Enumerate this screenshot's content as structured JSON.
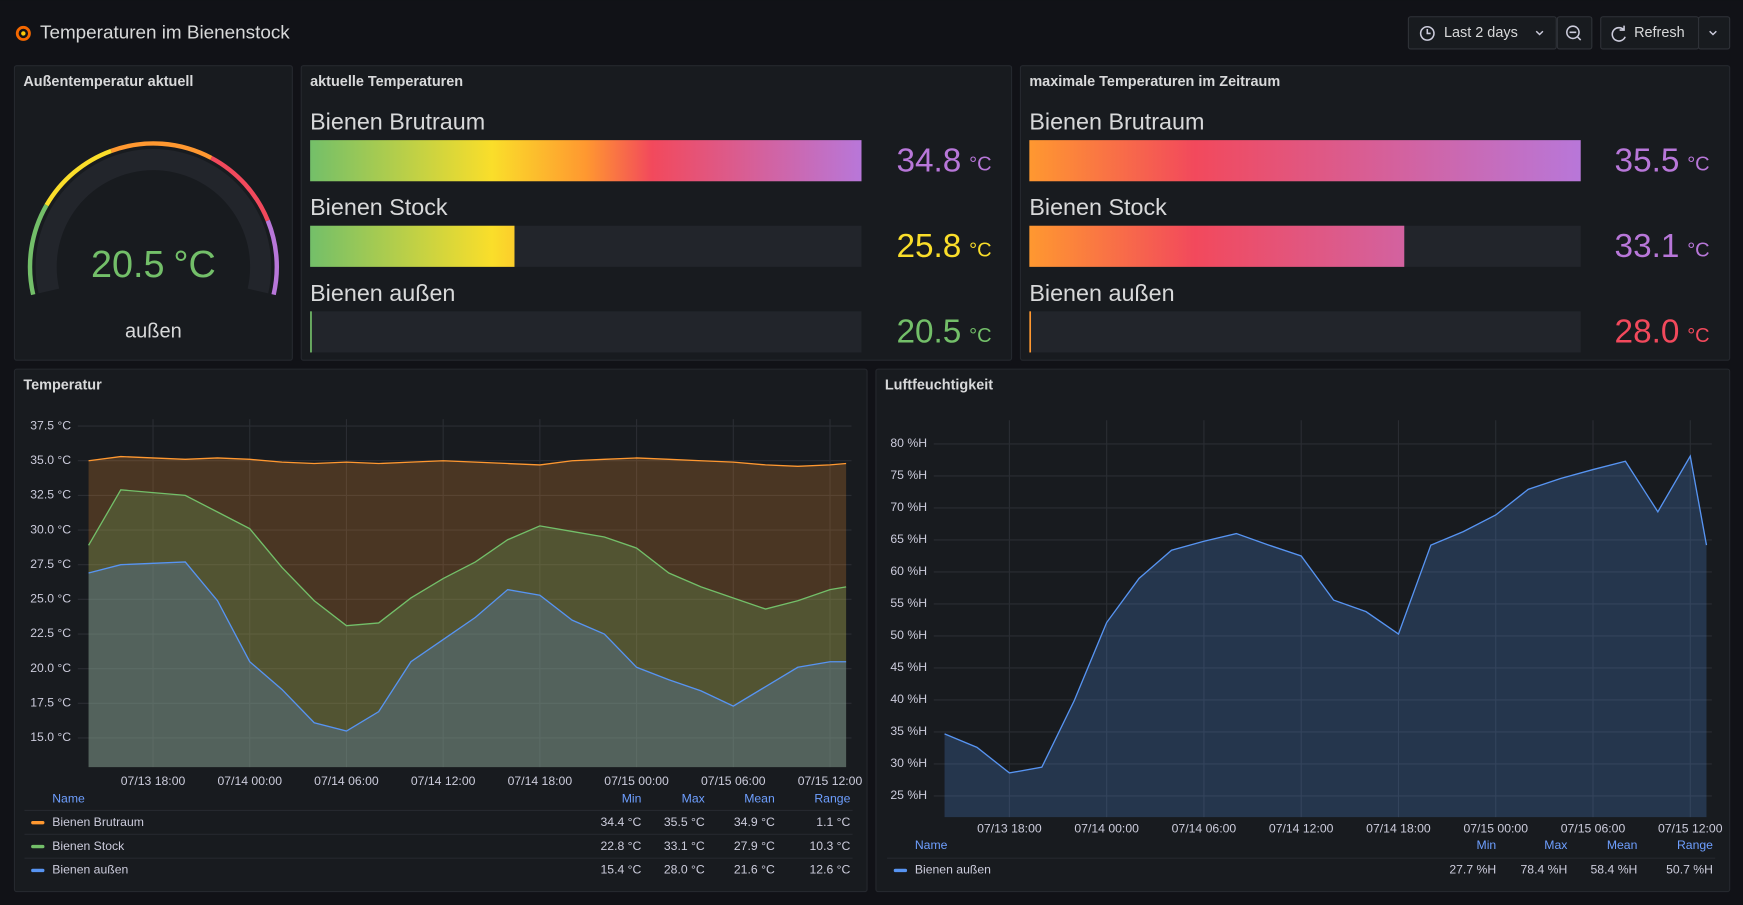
{
  "header": {
    "title": "Temperaturen im Bienenstock",
    "time_range": "Last 2 days",
    "refresh": "Refresh"
  },
  "gauge_panel": {
    "title": "Außentemperatur aktuell",
    "value": 20.5,
    "unit": "°C",
    "label": "außen",
    "color": "#73bf69"
  },
  "bar_panels": [
    {
      "title": "aktuelle Temperaturen",
      "unit": "°C",
      "names": [
        "Bienen Brutraum",
        "Bienen Stock",
        "Bienen außen"
      ],
      "values": [
        34.8,
        25.8,
        20.5
      ],
      "value_labels": [
        "34.8",
        "25.8",
        "20.5"
      ],
      "colors": [
        "#b877d9",
        "#fade2a",
        "#73bf69"
      ]
    },
    {
      "title": "maximale Temperaturen im Zeitraum",
      "unit": "°C",
      "names": [
        "Bienen Brutraum",
        "Bienen Stock",
        "Bienen außen"
      ],
      "values": [
        35.5,
        33.1,
        28
      ],
      "value_labels": [
        "35.5",
        "33.1",
        "28.0"
      ],
      "colors": [
        "#b877d9",
        "#b877d9",
        "#f2495c"
      ]
    }
  ],
  "chart_data": [
    {
      "type": "line",
      "title": "Temperatur",
      "x": [
        "07/13 14:00",
        "07/13 16:00",
        "07/13 18:00",
        "07/13 20:00",
        "07/13 22:00",
        "07/14 00:00",
        "07/14 02:00",
        "07/14 04:00",
        "07/14 06:00",
        "07/14 08:00",
        "07/14 10:00",
        "07/14 12:00",
        "07/14 14:00",
        "07/14 16:00",
        "07/14 18:00",
        "07/14 20:00",
        "07/14 22:00",
        "07/15 00:00",
        "07/15 02:00",
        "07/15 04:00",
        "07/15 06:00",
        "07/15 08:00",
        "07/15 10:00",
        "07/15 12:00",
        "07/15 13:00"
      ],
      "series": [
        {
          "name": "Bienen Brutraum",
          "color": "#ff9830",
          "values": [
            35.0,
            35.3,
            35.2,
            35.1,
            35.2,
            35.1,
            34.9,
            34.8,
            34.9,
            34.8,
            34.9,
            35.0,
            34.9,
            34.8,
            34.7,
            35.0,
            35.1,
            35.2,
            35.1,
            35.0,
            34.9,
            34.7,
            34.6,
            34.7,
            34.8
          ],
          "stats": [
            "34.4 °C",
            "35.5 °C",
            "34.9 °C",
            "1.1 °C"
          ]
        },
        {
          "name": "Bienen Stock",
          "color": "#73bf69",
          "values": [
            28.9,
            32.9,
            32.7,
            32.5,
            31.3,
            30.1,
            27.3,
            24.9,
            23.1,
            23.3,
            25.1,
            26.5,
            27.7,
            29.3,
            30.3,
            29.9,
            29.5,
            28.7,
            26.9,
            25.9,
            25.1,
            24.3,
            24.9,
            25.7,
            25.9
          ],
          "stats": [
            "22.8 °C",
            "33.1 °C",
            "27.9 °C",
            "10.3 °C"
          ]
        },
        {
          "name": "Bienen außen",
          "color": "#5794f2",
          "values": [
            26.9,
            27.5,
            27.6,
            27.7,
            24.9,
            20.5,
            18.5,
            16.1,
            15.5,
            16.9,
            20.5,
            22.1,
            23.7,
            25.7,
            25.3,
            23.5,
            22.5,
            20.1,
            19.2,
            18.4,
            17.3,
            18.7,
            20.1,
            20.5,
            20.5
          ],
          "stats": [
            "15.4 °C",
            "28.0 °C",
            "21.6 °C",
            "12.6 °C"
          ]
        }
      ],
      "xlim": [
        "07/13 13:20",
        "07/15 13:20"
      ],
      "xticks": [
        "07/13 18:00",
        "07/14 00:00",
        "07/14 06:00",
        "07/14 12:00",
        "07/14 18:00",
        "07/15 00:00",
        "07/15 06:00",
        "07/15 12:00"
      ],
      "ylim": [
        12.9,
        38.0
      ],
      "yticks": [
        {
          "value": 15,
          "label": "15.0 °C"
        },
        {
          "value": 17.5,
          "label": "17.5 °C"
        },
        {
          "value": 20,
          "label": "20.0 °C"
        },
        {
          "value": 22.5,
          "label": "22.5 °C"
        },
        {
          "value": 25,
          "label": "25.0 °C"
        },
        {
          "value": 27.5,
          "label": "27.5 °C"
        },
        {
          "value": 30,
          "label": "30.0 °C"
        },
        {
          "value": 32.5,
          "label": "32.5 °C"
        },
        {
          "value": 35,
          "label": "35.0 °C"
        },
        {
          "value": 37.5,
          "label": "37.5 °C"
        }
      ],
      "grid": true,
      "fill": true,
      "legend_columns": [
        "Name",
        "Min",
        "Max",
        "Mean",
        "Range"
      ]
    },
    {
      "type": "line",
      "title": "Luftfeuchtigkeit",
      "x": [
        "07/13 14:00",
        "07/13 16:00",
        "07/13 18:00",
        "07/13 20:00",
        "07/13 22:00",
        "07/14 00:00",
        "07/14 02:00",
        "07/14 04:00",
        "07/14 06:00",
        "07/14 08:00",
        "07/14 10:00",
        "07/14 12:00",
        "07/14 14:00",
        "07/14 16:00",
        "07/14 18:00",
        "07/14 20:00",
        "07/14 22:00",
        "07/15 00:00",
        "07/15 02:00",
        "07/15 04:00",
        "07/15 06:00",
        "07/15 08:00",
        "07/15 10:00",
        "07/15 12:00",
        "07/15 13:00"
      ],
      "series": [
        {
          "name": "Bienen außen",
          "color": "#5794f2",
          "values": [
            34.7,
            32.6,
            28.6,
            29.5,
            39.9,
            52.1,
            59,
            63.4,
            64.8,
            66.0,
            64.2,
            62.5,
            55.6,
            53.8,
            50.3,
            64.2,
            66.3,
            68.9,
            72.9,
            74.6,
            76.0,
            77.3,
            69.4,
            78.1,
            64.2
          ],
          "stats": [
            "27.7 %H",
            "78.4 %H",
            "58.4 %H",
            "50.7 %H"
          ]
        }
      ],
      "xlim": [
        "07/13 13:20",
        "07/15 13:20"
      ],
      "xticks": [
        "07/13 18:00",
        "07/14 00:00",
        "07/14 06:00",
        "07/14 12:00",
        "07/14 18:00",
        "07/15 00:00",
        "07/15 06:00",
        "07/15 12:00"
      ],
      "ylim": [
        21.7,
        83.7
      ],
      "yticks": [
        {
          "value": 25,
          "label": "25 %H"
        },
        {
          "value": 30,
          "label": "30 %H"
        },
        {
          "value": 35,
          "label": "35 %H"
        },
        {
          "value": 40,
          "label": "40 %H"
        },
        {
          "value": 45,
          "label": "45 %H"
        },
        {
          "value": 50,
          "label": "50 %H"
        },
        {
          "value": 55,
          "label": "55 %H"
        },
        {
          "value": 60,
          "label": "60 %H"
        },
        {
          "value": 65,
          "label": "65 %H"
        },
        {
          "value": 70,
          "label": "70 %H"
        },
        {
          "value": 75,
          "label": "75 %H"
        },
        {
          "value": 80,
          "label": "80 %H"
        }
      ],
      "grid": true,
      "fill": true,
      "legend_columns": [
        "Name",
        "Min",
        "Max",
        "Mean",
        "Range"
      ]
    }
  ]
}
